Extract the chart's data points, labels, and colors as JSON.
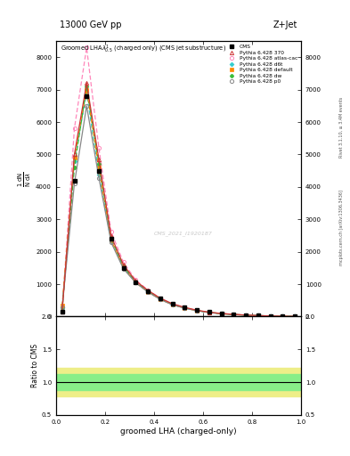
{
  "title_top": "13000 GeV pp",
  "title_right": "Z+Jet",
  "plot_title": "Groomed LHA\\lambda^{1}_{0.5} (charged only) (CMS jet substructure)",
  "xlabel": "groomed LHA (charged-only)",
  "ylabel_ratio": "Ratio to CMS",
  "right_label_top": "Rivet 3.1.10, ≥ 3.4M events",
  "right_label_bottom": "mcplots.cern.ch [arXiv:1306.3436]",
  "watermark": "CMS_2021_I1920187",
  "cms_label": "CMS",
  "x_values": [
    0.025,
    0.075,
    0.125,
    0.175,
    0.225,
    0.275,
    0.325,
    0.375,
    0.425,
    0.475,
    0.525,
    0.575,
    0.625,
    0.675,
    0.725,
    0.775,
    0.825,
    0.875,
    0.925,
    0.975
  ],
  "cms_data": [
    150,
    4200,
    6800,
    4500,
    2400,
    1500,
    1050,
    780,
    560,
    390,
    290,
    195,
    138,
    98,
    70,
    50,
    33,
    20,
    10,
    5
  ],
  "p370_data": [
    160,
    5000,
    7200,
    4850,
    2480,
    1600,
    1100,
    810,
    570,
    395,
    285,
    195,
    135,
    96,
    68,
    47,
    31,
    18,
    9,
    4
  ],
  "atlas_csc_data": [
    140,
    5800,
    8300,
    5200,
    2620,
    1680,
    1130,
    820,
    565,
    390,
    278,
    190,
    131,
    93,
    65,
    44,
    29,
    17,
    9,
    4
  ],
  "d6t_data": [
    280,
    4800,
    6900,
    4380,
    2330,
    1510,
    1060,
    775,
    540,
    372,
    265,
    183,
    127,
    89,
    63,
    43,
    28,
    17,
    9,
    4
  ],
  "default_data": [
    330,
    4900,
    7000,
    4590,
    2360,
    1510,
    1050,
    765,
    535,
    368,
    262,
    181,
    125,
    88,
    62,
    42,
    28,
    16,
    8,
    4
  ],
  "dw_data": [
    200,
    4600,
    7100,
    4720,
    2430,
    1555,
    1075,
    780,
    545,
    375,
    268,
    185,
    128,
    90,
    63,
    43,
    29,
    17,
    9,
    4
  ],
  "p0_data": [
    280,
    4100,
    6500,
    4280,
    2290,
    1475,
    1045,
    758,
    528,
    362,
    258,
    179,
    124,
    87,
    61,
    42,
    28,
    16,
    8,
    4
  ],
  "ylim_main": [
    0,
    8500
  ],
  "ytick_vals": [
    0,
    1000,
    2000,
    3000,
    4000,
    5000,
    6000,
    7000,
    8000
  ],
  "ylim_ratio": [
    0.5,
    2.0
  ],
  "ytick_ratio": [
    0.5,
    1.0,
    1.5,
    2.0
  ],
  "colors": {
    "cms": "#000000",
    "p370": "#cc3333",
    "atlas_csc": "#ff88bb",
    "d6t": "#33cccc",
    "default": "#ff8800",
    "dw": "#33bb33",
    "p0": "#888888"
  },
  "band_inner_color": "#88ee88",
  "band_outer_color": "#eeee88",
  "ratio_inner": [
    0.88,
    1.12
  ],
  "ratio_outer": [
    0.78,
    1.22
  ]
}
